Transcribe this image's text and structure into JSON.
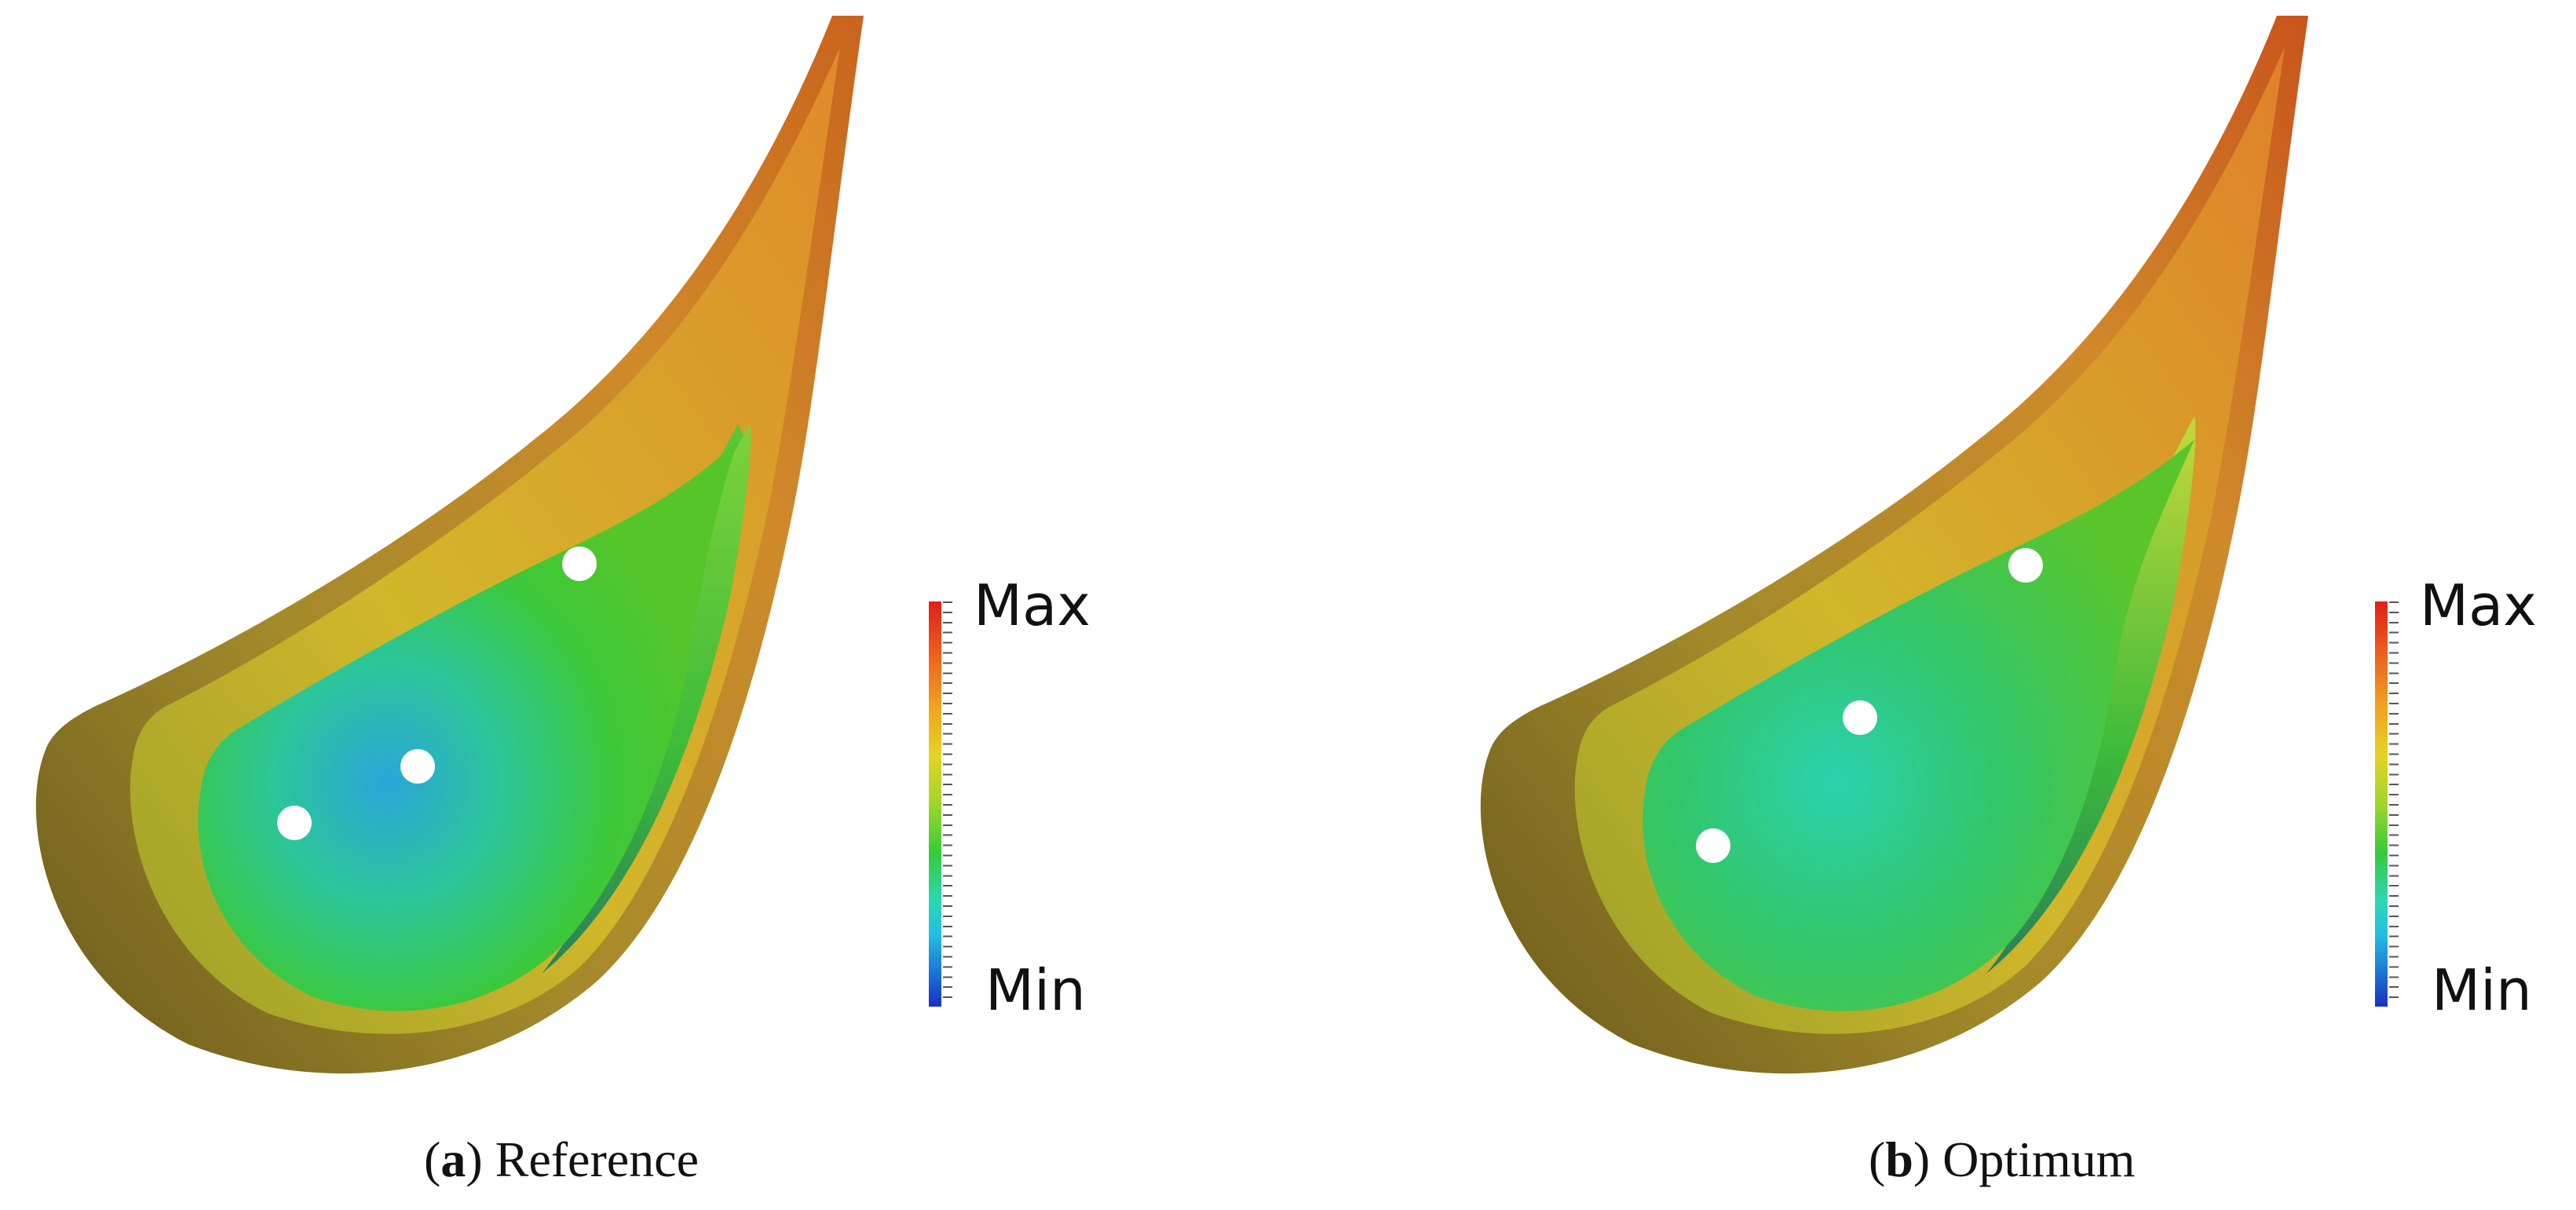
{
  "panels": [
    {
      "id": "a",
      "caption_letter": "a",
      "caption_text": "Reference",
      "legend_max": "Max",
      "legend_min": "Min"
    },
    {
      "id": "b",
      "caption_letter": "b",
      "caption_text": "Optimum",
      "legend_max": "Max",
      "legend_min": "Min"
    }
  ],
  "colors": {
    "max": "#e0201a",
    "high": "#f1a321",
    "mid": "#35cb3a",
    "low": "#22c0e2",
    "min": "#1a2fc4"
  }
}
